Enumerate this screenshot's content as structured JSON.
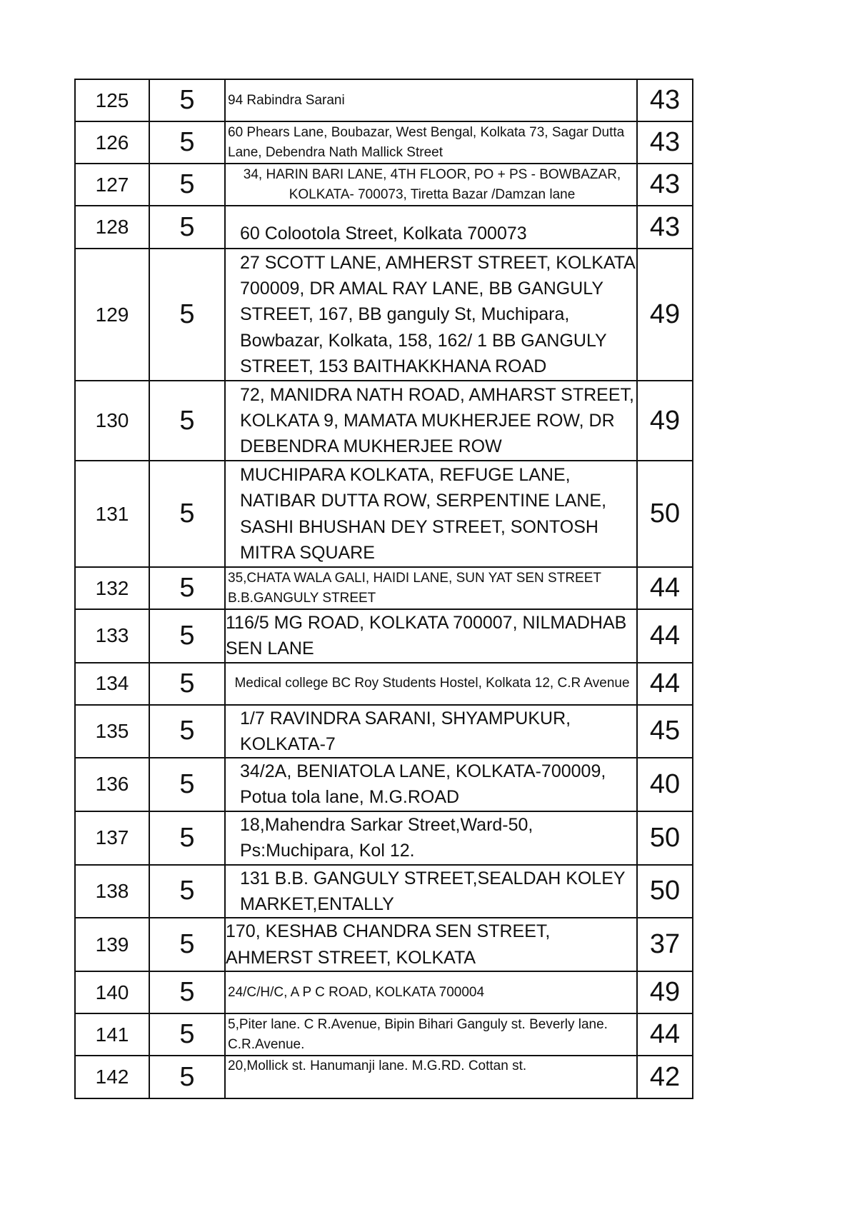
{
  "rows": [
    {
      "no": "125",
      "col2": "5",
      "address": "94  Rabindra Sarani",
      "value": "43"
    },
    {
      "no": "126",
      "col2": "5",
      "address": "60 Phears Lane, Boubazar, West Bengal, Kolkata 73, Sagar Dutta Lane, Debendra Nath Mallick Street",
      "value": "43"
    },
    {
      "no": "127",
      "col2": "5",
      "address": "34, HARIN BARI LANE, 4TH FLOOR, PO + PS - BOWBAZAR, KOLKATA- 700073, Tiretta Bazar  /Damzan lane",
      "value": "43"
    },
    {
      "no": "128",
      "col2": "5",
      "address": "60 Colootola Street, Kolkata 700073",
      "value": "43"
    },
    {
      "no": "129",
      "col2": "5",
      "address": "27 SCOTT LANE, AMHERST STREET, KOLKATA 700009, DR AMAL RAY LANE, BB GANGULY STREET, 167, BB ganguly St, Muchipara, Bowbazar, Kolkata, 158, 162/ 1 BB GANGULY STREET, 153 BAITHAKKHANA ROAD",
      "value": "49"
    },
    {
      "no": "130",
      "col2": "5",
      "address": "72, MANIDRA NATH ROAD, AMHARST STREET, KOLKATA 9, MAMATA MUKHERJEE ROW, DR DEBENDRA MUKHERJEE ROW",
      "value": "49"
    },
    {
      "no": "131",
      "col2": "5",
      "address": "MUCHIPARA KOLKATA, REFUGE LANE, NATIBAR DUTTA ROW, SERPENTINE LANE, SASHI BHUSHAN DEY STREET, SONTOSH MITRA SQUARE",
      "value": "50"
    },
    {
      "no": "132",
      "col2": "5",
      "address": "35,CHATA WALA GALI, HAIDI LANE, SUN YAT SEN STREET B.B.GANGULY STREET",
      "value": "44"
    },
    {
      "no": "133",
      "col2": "5",
      "address": "116/5 MG ROAD, KOLKATA 700007, NILMADHAB SEN LANE",
      "value": "44"
    },
    {
      "no": "134",
      "col2": "5",
      "address": "Medical college BC Roy Students Hostel, Kolkata 12, C.R Avenue",
      "value": "44"
    },
    {
      "no": "135",
      "col2": "5",
      "address": "1/7 RAVINDRA SARANI, SHYAMPUKUR, KOLKATA-7",
      "value": "45"
    },
    {
      "no": "136",
      "col2": "5",
      "address": "34/2A, BENIATOLA LANE, KOLKATA-700009, Potua tola lane, M.G.ROAD",
      "value": "40"
    },
    {
      "no": "137",
      "col2": "5",
      "address": "18,Mahendra Sarkar Street,Ward-50, Ps:Muchipara, Kol 12.",
      "value": "50"
    },
    {
      "no": "138",
      "col2": "5",
      "address": "131 B.B. GANGULY STREET,SEALDAH KOLEY MARKET,ENTALLY",
      "value": "50"
    },
    {
      "no": "139",
      "col2": "5",
      "address": "170, KESHAB CHANDRA SEN STREET, AHMERST STREET, KOLKATA",
      "value": "37"
    },
    {
      "no": "140",
      "col2": "5",
      "address": "24/C/H/C, A P C ROAD, KOLKATA 700004",
      "value": "49"
    },
    {
      "no": "141",
      "col2": "5",
      "address": "5,Piter lane. C R.Avenue, Bipin Bihari Ganguly st. Beverly lane. C.R.Avenue.",
      "value": "44"
    },
    {
      "no": "142",
      "col2": "5",
      "address": "20,Mollick st. Hanumanji lane. M.G.RD. Cottan st.",
      "value": "42"
    }
  ]
}
